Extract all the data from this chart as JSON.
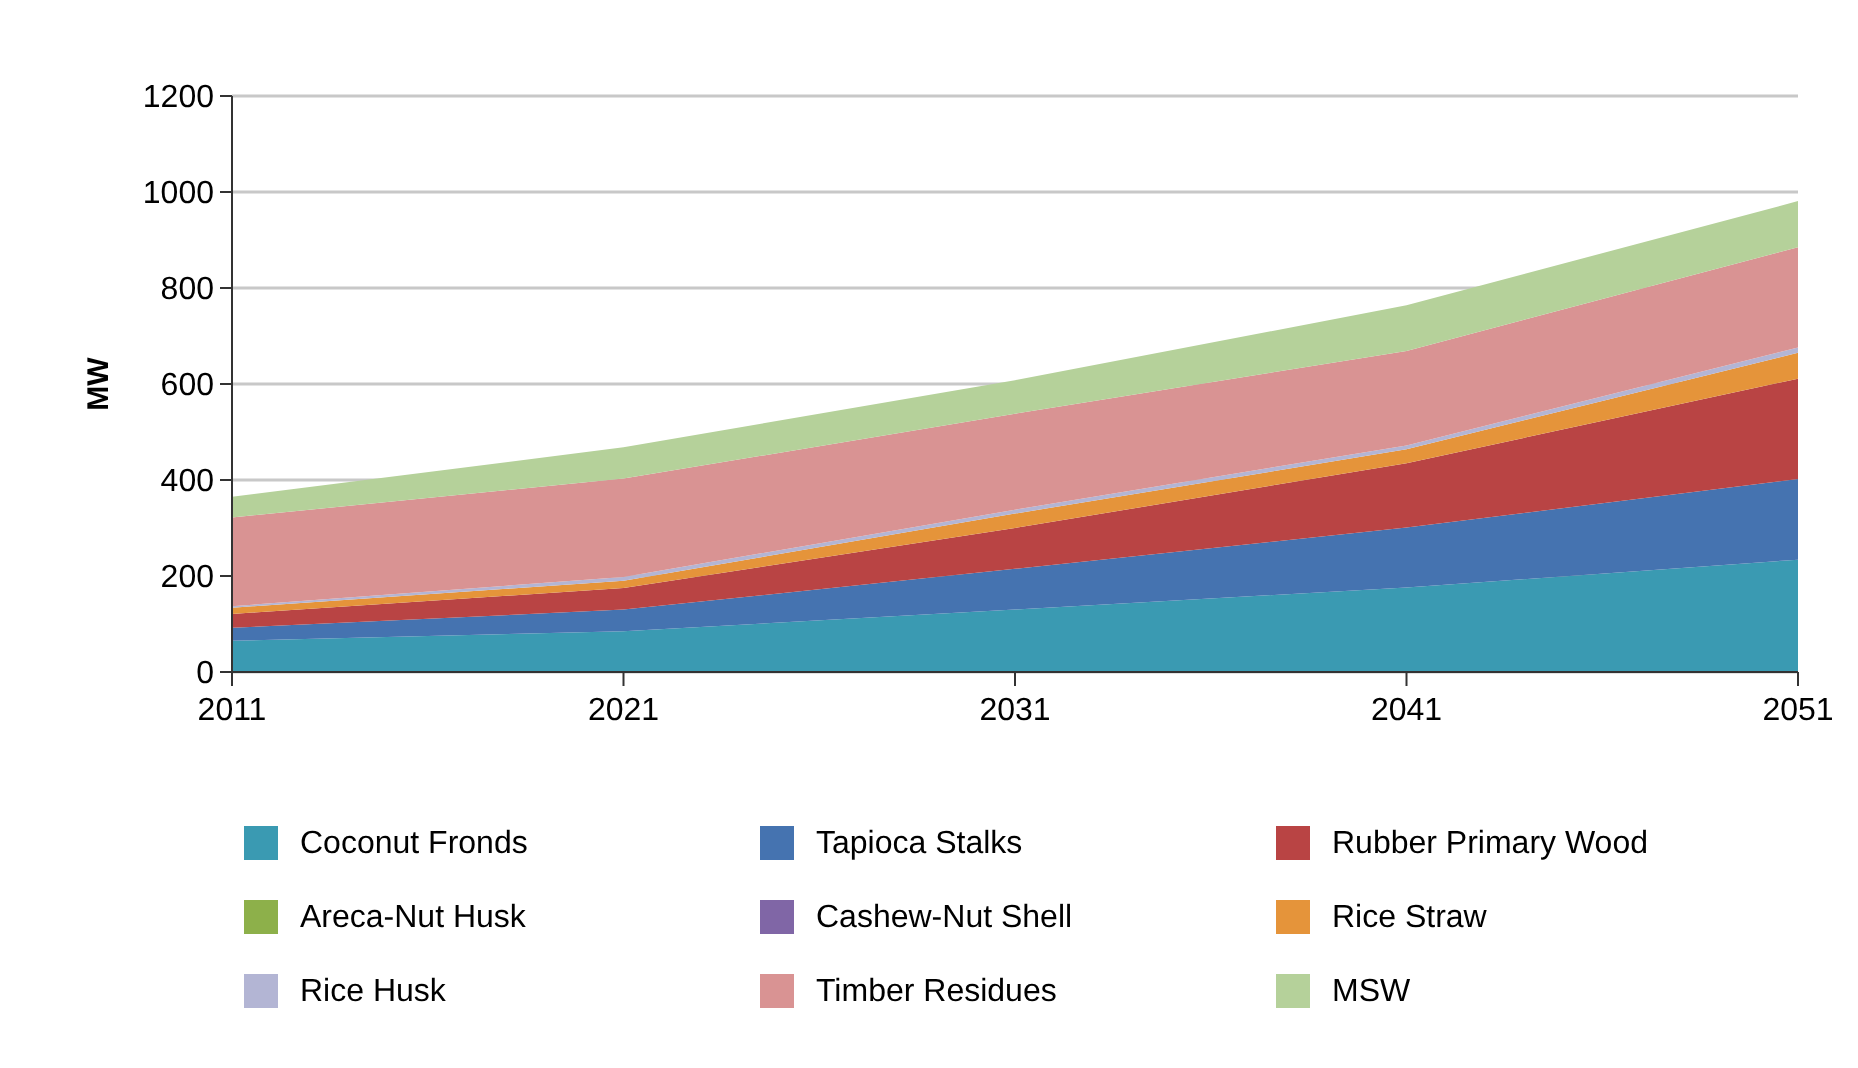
{
  "chart_data": {
    "type": "area",
    "stacked": true,
    "ylabel": "MW",
    "x": [
      2011,
      2021,
      2031,
      2041,
      2051
    ],
    "xlim": [
      2011,
      2051
    ],
    "xticks": [
      2011,
      2021,
      2031,
      2041,
      2051
    ],
    "ylim": [
      0,
      1200
    ],
    "yticks": [
      0,
      200,
      400,
      600,
      800,
      1000,
      1200
    ],
    "grid": "y",
    "legend": "bottom",
    "series": [
      {
        "name": "Coconut Fronds",
        "color": "#3a9ab2",
        "values": [
          65,
          85,
          130,
          176,
          234
        ]
      },
      {
        "name": "Tapioca Stalks",
        "color": "#4573b0",
        "values": [
          27,
          45,
          85,
          125,
          168
        ]
      },
      {
        "name": "Rubber Primary Wood",
        "color": "#b94444",
        "values": [
          29,
          45,
          85,
          134,
          209
        ]
      },
      {
        "name": "Areca-Nut Husk",
        "color": "#8db04a",
        "values": [
          null,
          null,
          null,
          null,
          null
        ]
      },
      {
        "name": "Cashew-Nut Shell",
        "color": "#8066a6",
        "values": [
          null,
          null,
          null,
          null,
          null
        ]
      },
      {
        "name": "Rice Straw",
        "color": "#e5943a",
        "values": [
          13,
          15,
          30,
          29,
          54
        ]
      },
      {
        "name": "Rice Husk",
        "color": "#b3b5d4",
        "values": [
          3,
          8,
          8,
          8,
          11
        ]
      },
      {
        "name": "Timber Residues",
        "color": "#d99393",
        "values": [
          185,
          205,
          200,
          197,
          209
        ]
      },
      {
        "name": "MSW",
        "color": "#b5d19a",
        "values": [
          43,
          65,
          70,
          95,
          96
        ]
      }
    ]
  }
}
